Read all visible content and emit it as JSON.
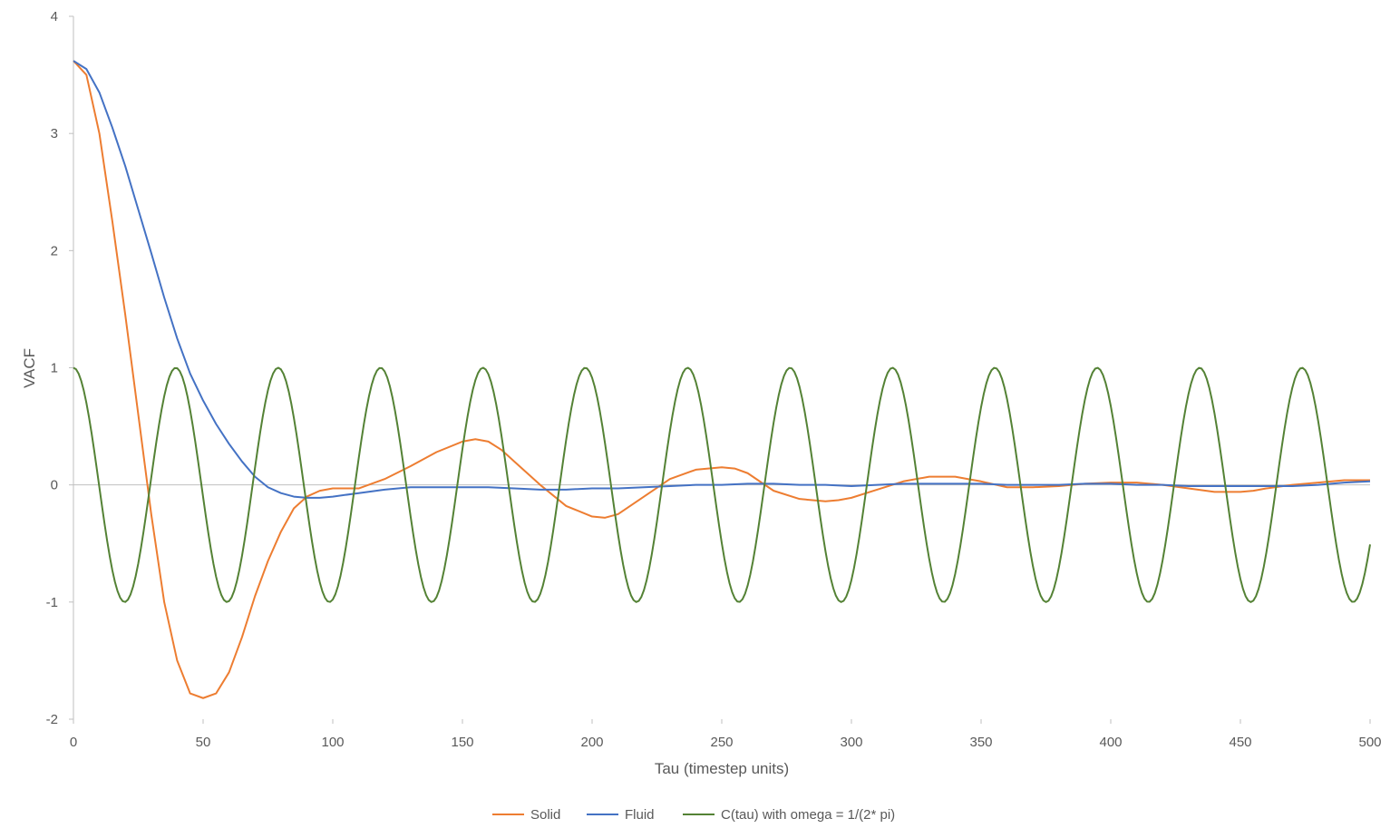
{
  "chart_data": {
    "type": "line",
    "title": "",
    "xlabel": "Tau (timestep units)",
    "ylabel": "VACF",
    "xlim": [
      0,
      500
    ],
    "ylim": [
      -2,
      4
    ],
    "x_ticks": [
      0,
      50,
      100,
      150,
      200,
      250,
      300,
      350,
      400,
      450,
      500
    ],
    "y_ticks": [
      -2,
      -1,
      0,
      1,
      2,
      3,
      4
    ],
    "grid": false,
    "legend_position": "bottom",
    "series": [
      {
        "name": "Solid",
        "color": "#ED7D31",
        "x": [
          0,
          5,
          10,
          15,
          20,
          25,
          30,
          35,
          40,
          45,
          50,
          55,
          60,
          65,
          70,
          75,
          80,
          85,
          90,
          95,
          100,
          110,
          120,
          130,
          140,
          150,
          155,
          160,
          165,
          170,
          180,
          190,
          200,
          205,
          210,
          220,
          230,
          240,
          250,
          255,
          260,
          270,
          280,
          290,
          295,
          300,
          310,
          320,
          330,
          340,
          345,
          350,
          360,
          370,
          380,
          390,
          400,
          410,
          420,
          430,
          440,
          450,
          455,
          460,
          470,
          480,
          490,
          500
        ],
        "y": [
          3.62,
          3.5,
          3.0,
          2.25,
          1.45,
          0.6,
          -0.25,
          -1.0,
          -1.5,
          -1.78,
          -1.82,
          -1.78,
          -1.6,
          -1.3,
          -0.95,
          -0.65,
          -0.4,
          -0.2,
          -0.1,
          -0.05,
          -0.03,
          -0.03,
          0.05,
          0.16,
          0.28,
          0.37,
          0.39,
          0.37,
          0.3,
          0.2,
          0.0,
          -0.18,
          -0.27,
          -0.28,
          -0.25,
          -0.1,
          0.05,
          0.13,
          0.15,
          0.14,
          0.1,
          -0.05,
          -0.12,
          -0.14,
          -0.13,
          -0.11,
          -0.04,
          0.03,
          0.07,
          0.07,
          0.05,
          0.03,
          -0.02,
          -0.02,
          -0.01,
          0.01,
          0.02,
          0.02,
          0.0,
          -0.03,
          -0.06,
          -0.06,
          -0.05,
          -0.03,
          0.0,
          0.02,
          0.04,
          0.04
        ]
      },
      {
        "name": "Fluid",
        "color": "#4472C4",
        "x": [
          0,
          5,
          10,
          15,
          20,
          25,
          30,
          35,
          40,
          45,
          50,
          55,
          60,
          65,
          70,
          75,
          80,
          85,
          90,
          95,
          100,
          110,
          120,
          130,
          140,
          150,
          160,
          170,
          180,
          190,
          200,
          210,
          220,
          230,
          240,
          250,
          260,
          270,
          280,
          290,
          300,
          310,
          320,
          330,
          340,
          350,
          360,
          370,
          380,
          390,
          400,
          410,
          420,
          430,
          440,
          450,
          460,
          470,
          480,
          490,
          500
        ],
        "y": [
          3.62,
          3.55,
          3.35,
          3.05,
          2.72,
          2.35,
          1.98,
          1.6,
          1.25,
          0.95,
          0.72,
          0.52,
          0.35,
          0.2,
          0.07,
          -0.02,
          -0.07,
          -0.1,
          -0.11,
          -0.11,
          -0.1,
          -0.07,
          -0.04,
          -0.02,
          -0.02,
          -0.02,
          -0.02,
          -0.03,
          -0.04,
          -0.04,
          -0.03,
          -0.03,
          -0.02,
          -0.01,
          0.0,
          0.0,
          0.01,
          0.01,
          0.0,
          0.0,
          -0.01,
          0.0,
          0.01,
          0.01,
          0.01,
          0.01,
          0.0,
          0.0,
          0.0,
          0.01,
          0.01,
          0.0,
          0.0,
          -0.01,
          -0.01,
          -0.01,
          -0.01,
          -0.01,
          0.0,
          0.02,
          0.03
        ]
      },
      {
        "name": "C(tau) with omega = 1/(2*pi)",
        "color": "#548235",
        "function": "cos(x/(2*pi))",
        "x_start": 0,
        "x_end": 500,
        "x_step": 1
      }
    ]
  },
  "legend": {
    "items": [
      {
        "label": "Solid",
        "color": "#ED7D31"
      },
      {
        "label": "Fluid",
        "color": "#4472C4"
      },
      {
        "label": "C(tau) with omega = 1/(2* pi)",
        "color": "#548235"
      }
    ]
  }
}
